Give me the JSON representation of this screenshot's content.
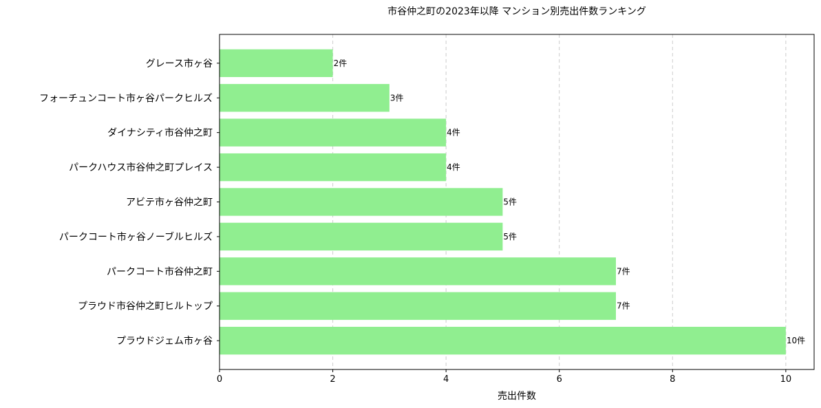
{
  "chart_data": {
    "type": "bar",
    "orientation": "horizontal",
    "title": "市谷仲之町の2023年以降 マンション別売出件数ランキング",
    "xlabel": "売出件数",
    "ylabel": "",
    "xlim": [
      0,
      10.5
    ],
    "xticks": [
      "0",
      "2",
      "4",
      "6",
      "8",
      "10"
    ],
    "grid": "x-dashed",
    "bar_color": "#90ee90",
    "categories": [
      "グレース市ヶ谷",
      "フォーチュンコート市ヶ谷パークヒルズ",
      "ダイナシティ市谷仲之町",
      "パークハウス市谷仲之町プレイス",
      "アビテ市ヶ谷仲之町",
      "パークコート市ヶ谷ノーブルヒルズ",
      "パークコート市谷仲之町",
      "プラウド市谷仲之町ヒルトップ",
      "プラウドジェム市ヶ谷"
    ],
    "values": [
      2,
      3,
      4,
      4,
      5,
      5,
      7,
      7,
      10
    ],
    "data_labels": [
      "2件",
      "3件",
      "4件",
      "4件",
      "5件",
      "5件",
      "7件",
      "7件",
      "10件"
    ]
  }
}
